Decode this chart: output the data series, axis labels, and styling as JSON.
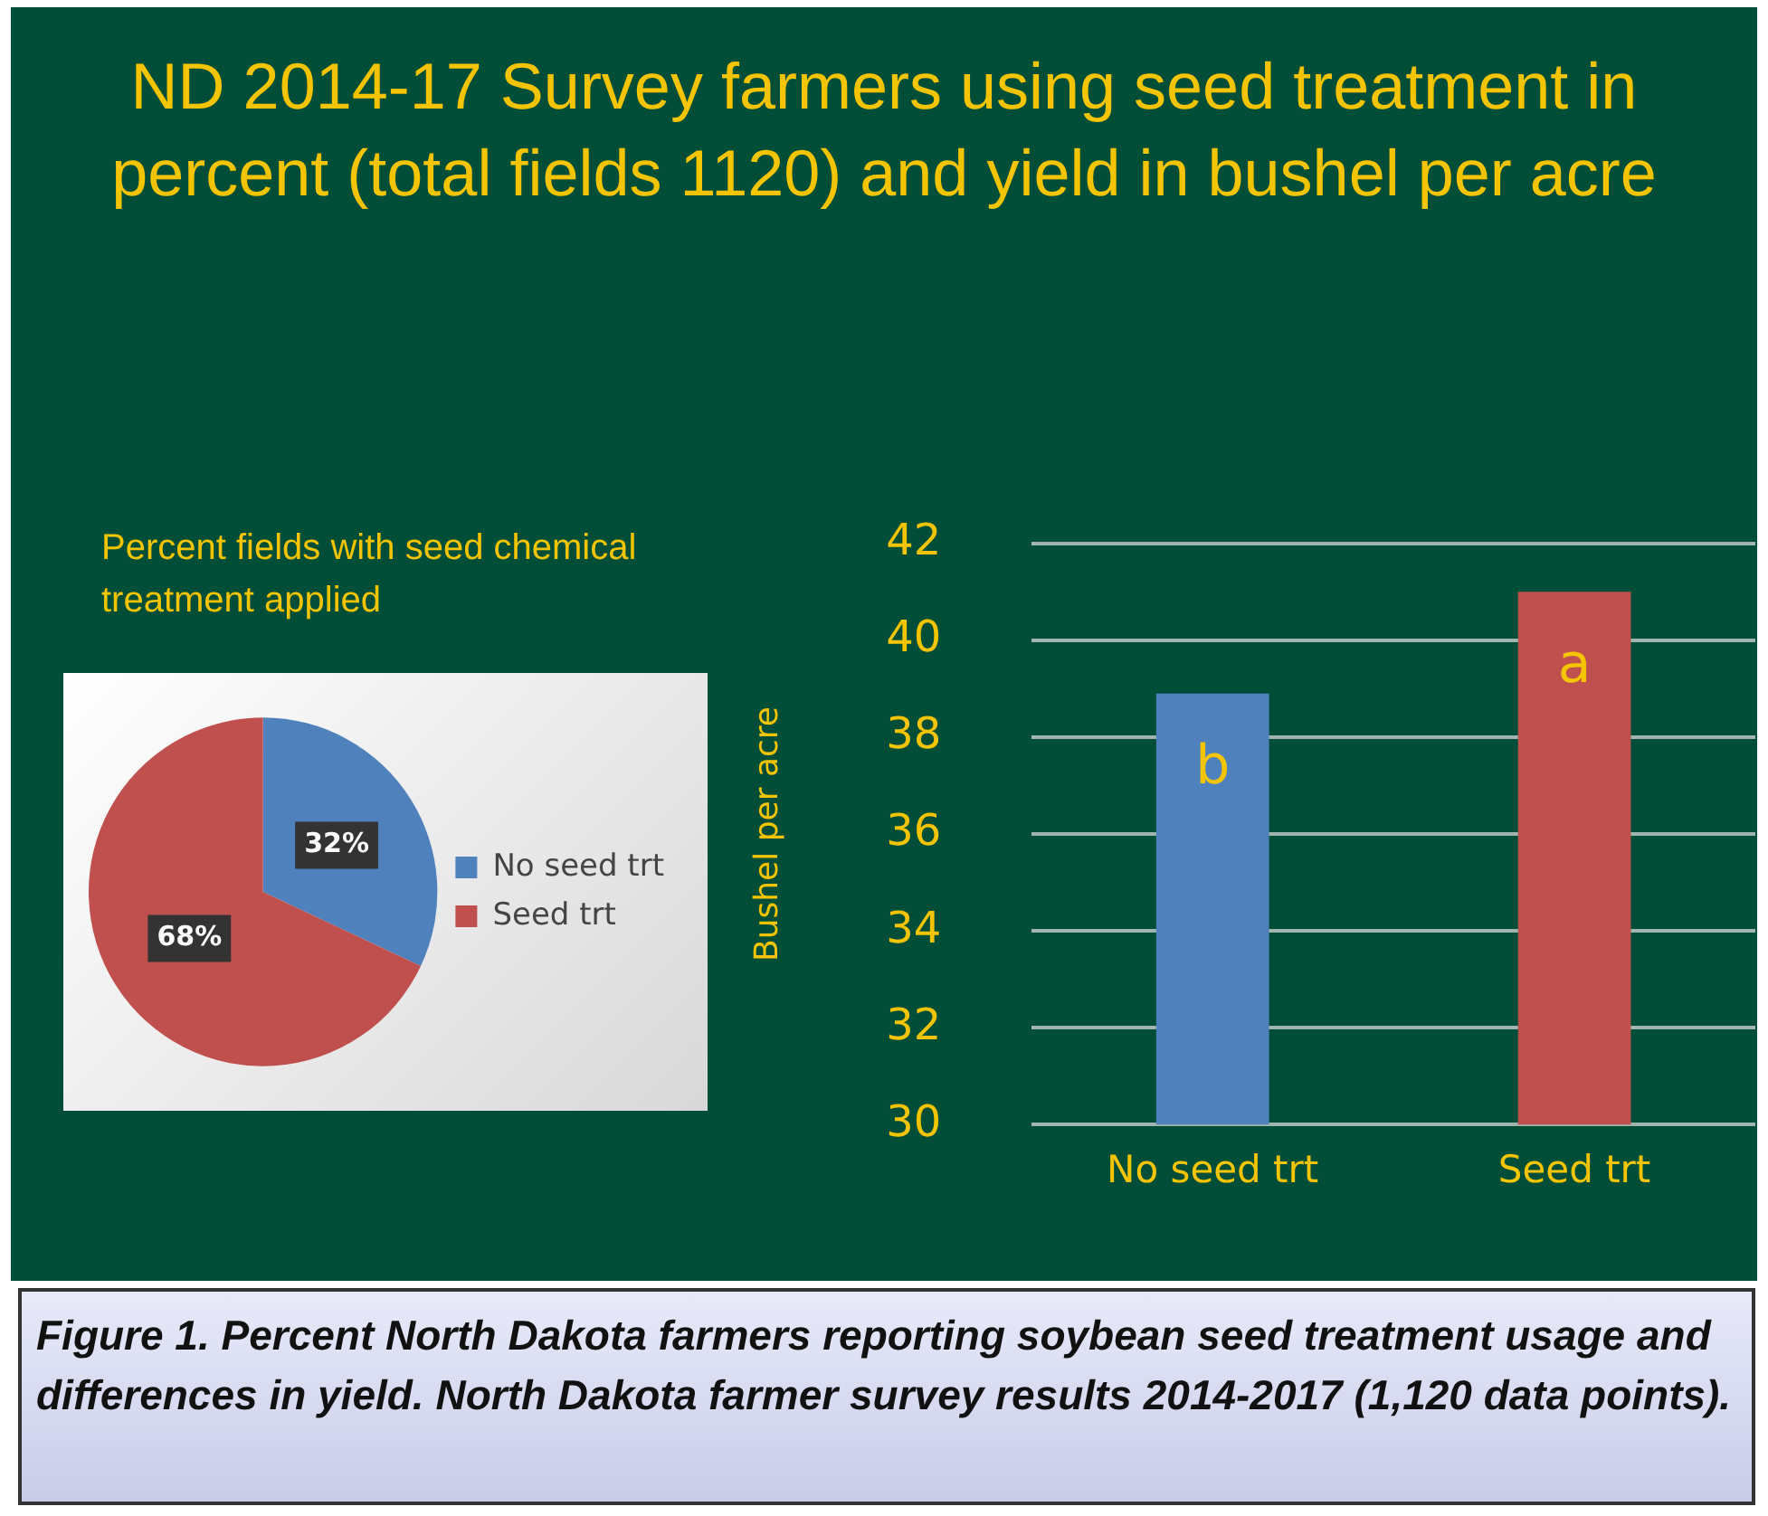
{
  "chart_data": [
    {
      "type": "pie",
      "title": "ND 2014-17 Survey farmers using seed treatment in percent (total fields 1120) and yield in bushel per acre",
      "subtitle": "Percent fields with seed chemical treatment applied",
      "categories": [
        "No seed trt",
        "Seed trt"
      ],
      "values": [
        32,
        68
      ],
      "colors": [
        "#4f81bd",
        "#c0504d"
      ],
      "value_labels": [
        "32%",
        "68%"
      ],
      "legend": "right",
      "annotations": [
        "Figure 1. Percent North Dakota farmers reporting soybean seed treatment usage and differences in yield. North Dakota farmer survey results 2014-2017 (1,120 data points)."
      ]
    },
    {
      "type": "bar",
      "ylabel": "Bushel per acre",
      "categories": [
        "No seed trt",
        "Seed trt"
      ],
      "values": [
        38.9,
        41.0
      ],
      "colors": [
        "#4f81bd",
        "#c0504d"
      ],
      "ylim": [
        30,
        42
      ],
      "yticks": [
        30,
        32,
        34,
        36,
        38,
        40,
        42
      ],
      "grid": "y",
      "annotations": [
        "b",
        "a"
      ]
    }
  ]
}
